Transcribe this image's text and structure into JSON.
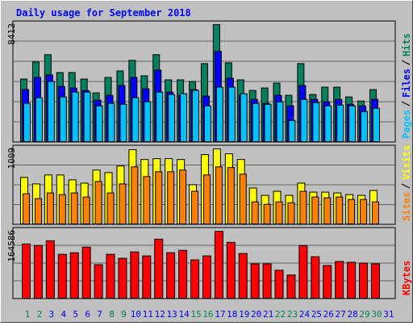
{
  "title": "Daily usage for September 2018",
  "chart_data": [
    {
      "type": "bar",
      "ylim": [
        0,
        8412
      ],
      "yticks": [
        8412
      ],
      "grid": true,
      "series": [
        {
          "name": "Hits",
          "color": "#00805c",
          "values": [
            4524,
            5742,
            6264,
            4988,
            4988,
            4524,
            3538,
            4640,
            5104,
            5858,
            4756,
            6264,
            4466,
            4466,
            4350,
            5626,
            8412,
            5684,
            4466,
            3712,
            3886,
            4234,
            3364,
            5626,
            3422,
            3944,
            3944,
            3248,
            2958,
            3770,
            null
          ]
        },
        {
          "name": "Files",
          "color": "#0000ff",
          "values": [
            3770,
            4640,
            4814,
            4002,
            3886,
            3712,
            3016,
            3364,
            4060,
            4640,
            3828,
            5162,
            3596,
            3364,
            3770,
            3306,
            6496,
            4582,
            3364,
            3074,
            2784,
            3364,
            2610,
            4060,
            3074,
            2900,
            3074,
            2726,
            2610,
            3074,
            null
          ]
        },
        {
          "name": "Pages",
          "color": "#00c0ff",
          "values": [
            2784,
            3190,
            4350,
            3248,
            3596,
            3596,
            2610,
            2784,
            2726,
            3190,
            2900,
            3596,
            3422,
            3480,
            3712,
            2610,
            3944,
            3944,
            3480,
            2784,
            2726,
            2900,
            1566,
            3074,
            2842,
            2610,
            2668,
            2610,
            2204,
            2436,
            null
          ]
        }
      ]
    },
    {
      "type": "bar",
      "ylim": [
        0,
        1009
      ],
      "yticks": [
        1009
      ],
      "grid": true,
      "series": [
        {
          "name": "Visits",
          "color": "#ffff00",
          "values": [
            629,
            543,
            662,
            662,
            597,
            553,
            727,
            694,
            781,
            998,
            868,
            879,
            879,
            868,
            532,
            933,
            1009,
            944,
            868,
            488,
            391,
            445,
            391,
            553,
            434,
            434,
            423,
            401,
            391,
            456,
            null
          ]
        },
        {
          "name": "Sites",
          "color": "#ff8000",
          "values": [
            412,
            347,
            423,
            401,
            423,
            369,
            575,
            423,
            543,
            770,
            640,
            705,
            705,
            727,
            445,
            662,
            770,
            760,
            673,
            304,
            271,
            304,
            293,
            445,
            369,
            358,
            369,
            336,
            336,
            304,
            null
          ]
        }
      ]
    },
    {
      "type": "bar",
      "ylim": [
        0,
        164586
      ],
      "yticks": [
        164586
      ],
      "grid": true,
      "categories": [
        "1",
        "2",
        "3",
        "4",
        "5",
        "6",
        "7",
        "8",
        "9",
        "10",
        "11",
        "12",
        "13",
        "14",
        "15",
        "16",
        "17",
        "18",
        "19",
        "20",
        "21",
        "22",
        "23",
        "24",
        "25",
        "26",
        "27",
        "28",
        "29",
        "30",
        "31"
      ],
      "category_colors": [
        "#00805c",
        "#00805c",
        "#0000ff",
        "#0000ff",
        "#0000ff",
        "#0000ff",
        "#0000ff",
        "#00805c",
        "#00805c",
        "#0000ff",
        "#0000ff",
        "#0000ff",
        "#0000ff",
        "#0000ff",
        "#00805c",
        "#00805c",
        "#0000ff",
        "#0000ff",
        "#0000ff",
        "#0000ff",
        "#0000ff",
        "#00805c",
        "#00805c",
        "#0000ff",
        "#0000ff",
        "#0000ff",
        "#0000ff",
        "#0000ff",
        "#00805c",
        "#00805c",
        "#0000ff"
      ],
      "series": [
        {
          "name": "KBytes",
          "color": "#ff0000",
          "values": [
            133584,
            129712,
            141328,
            108416,
            112288,
            125840,
            83248,
            108416,
            98736,
            114224,
            104544,
            145200,
            112288,
            118096,
            94864,
            104544,
            164586,
            137456,
            110352,
            85184,
            85184,
            69696,
            58080,
            129712,
            102608,
            81312,
            90992,
            89056,
            87120,
            85184,
            null
          ]
        }
      ]
    }
  ]
}
